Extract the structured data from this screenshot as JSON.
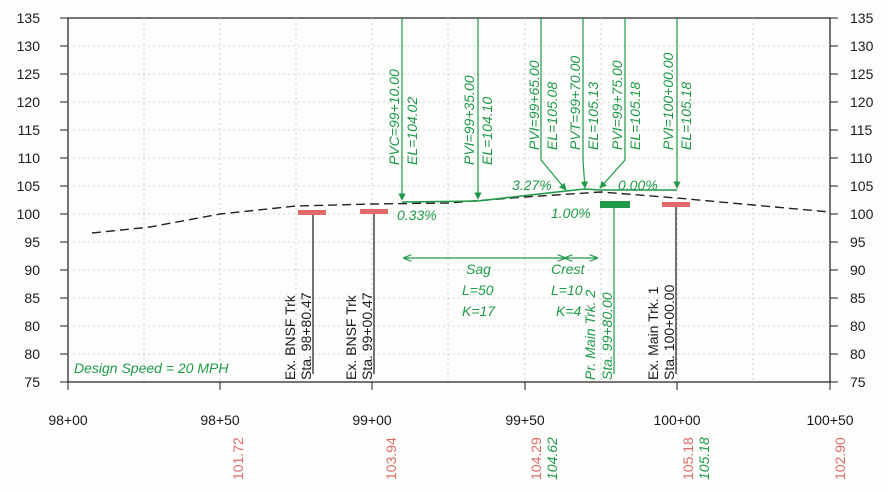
{
  "diagram": {
    "y_labels": [
      "135",
      "130",
      "125",
      "120",
      "115",
      "110",
      "105",
      "100",
      "95",
      "90",
      "85",
      "80",
      "75"
    ],
    "x_labels": [
      "98+00",
      "98+50",
      "99+00",
      "99+50",
      "100+00",
      "100+50"
    ],
    "design_speed": "Design Speed = 20 MPH",
    "grades": {
      "g1": "0.33%",
      "g2": "3.27%",
      "g3": "1.00%",
      "g4": "0.00%"
    },
    "callouts": [
      {
        "pv": "PVC=99+10.00",
        "el": "EL=104.02"
      },
      {
        "pv": "PVI=99+35.00",
        "el": "EL=104.10"
      },
      {
        "pv": "PVI=99+65.00",
        "el": "EL=105.08"
      },
      {
        "pv": "PVT=99+70.00",
        "el": "EL=105.13"
      },
      {
        "pv": "PVI=99+75.00",
        "el": "EL=105.18"
      },
      {
        "pv": "PVI=100+00.00",
        "el": "EL=105.18"
      }
    ],
    "tracks": [
      {
        "name": "Ex. BNSF Trk",
        "sta": "Sta. 98+80.47"
      },
      {
        "name": "Ex. BNSF Trk",
        "sta": "Sta. 99+00.47"
      },
      {
        "name": "Pr. Main Trk. 2",
        "sta": "Sta. 99+80.00"
      },
      {
        "name": "Ex. Main Trk. 1",
        "sta": "Sta. 100+00.00"
      }
    ],
    "curves": {
      "sag": {
        "title": "Sag",
        "length": "L=50",
        "k": "K=17"
      },
      "crest": {
        "title": "Crest",
        "length": "L=10",
        "k": "K=4"
      }
    },
    "elevations": {
      "existing": [
        "101.72",
        "103.94",
        "104.29",
        "105.18",
        "102.90"
      ],
      "proposed": [
        "104.62",
        "105.18"
      ]
    },
    "colors": {
      "proposed": "#1f9a4a",
      "existing_marker": "#e06a6a",
      "ink": "#1a1a1a",
      "grid": "#bdbdbd"
    }
  }
}
